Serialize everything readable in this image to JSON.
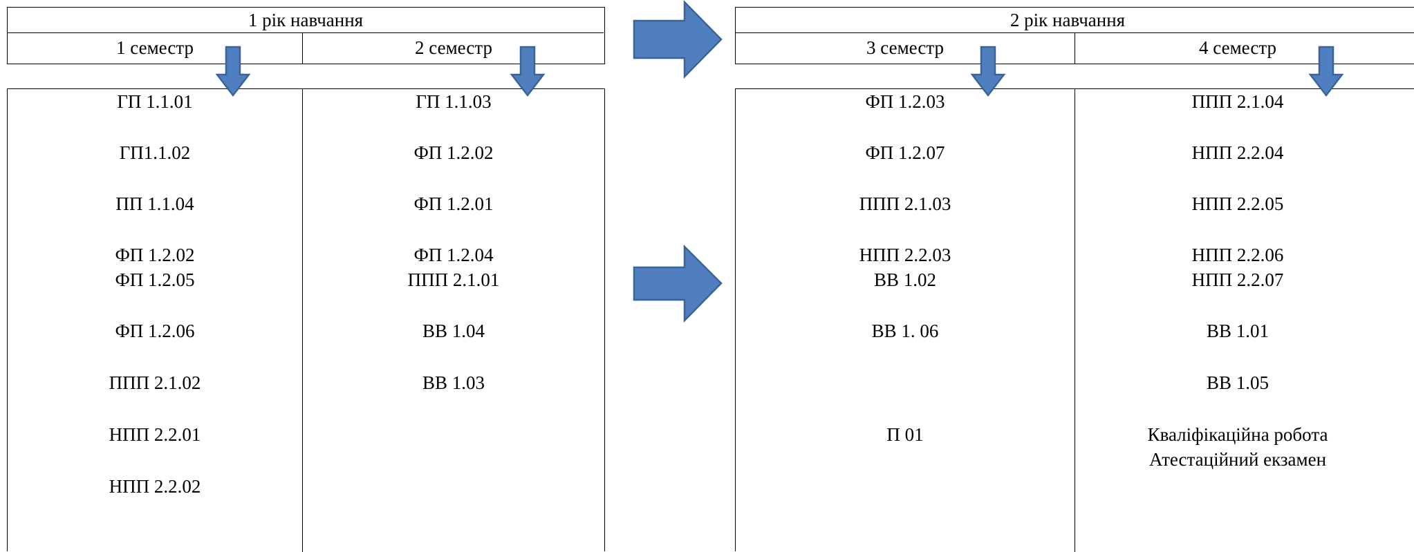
{
  "year1": {
    "title": "1 рік навчання",
    "semesters": [
      {
        "label": "1 семестр",
        "courses": [
          "ГП 1.1.01",
          "ГП1.1.02",
          "ПП 1.1.04",
          "ФП 1.2.02",
          "ФП 1.2.05",
          "ФП 1.2.06",
          "ППП 2.1.02",
          "НПП 2.2.01",
          "НПП 2.2.02"
        ]
      },
      {
        "label": "2 семестр",
        "courses": [
          "ГП 1.1.03",
          "ФП 1.2.02",
          "ФП 1.2.01",
          "ФП 1.2.04",
          "ППП 2.1.01",
          "ВВ 1.04",
          "ВВ 1.03"
        ]
      }
    ]
  },
  "year2": {
    "title": "2 рік навчання",
    "semesters": [
      {
        "label": "3 семестр",
        "courses": [
          "ФП 1.2.03",
          "ФП 1.2.07",
          "ППП 2.1.03",
          "НПП 2.2.03",
          "ВВ 1.02",
          "ВВ 1. 06",
          "П 01"
        ]
      },
      {
        "label": "4 семестр",
        "courses": [
          "ППП 2.1.04",
          "НПП 2.2.04",
          "НПП 2.2.05",
          "НПП 2.2.06",
          "НПП 2.2.07",
          "ВВ 1.01",
          "ВВ 1.05",
          "Кваліфікаційна робота",
          "Атестаційний екзамен"
        ]
      }
    ]
  },
  "colors": {
    "arrow_fill": "#4F7FBF",
    "arrow_stroke": "#3A6496",
    "line": "#000000"
  }
}
